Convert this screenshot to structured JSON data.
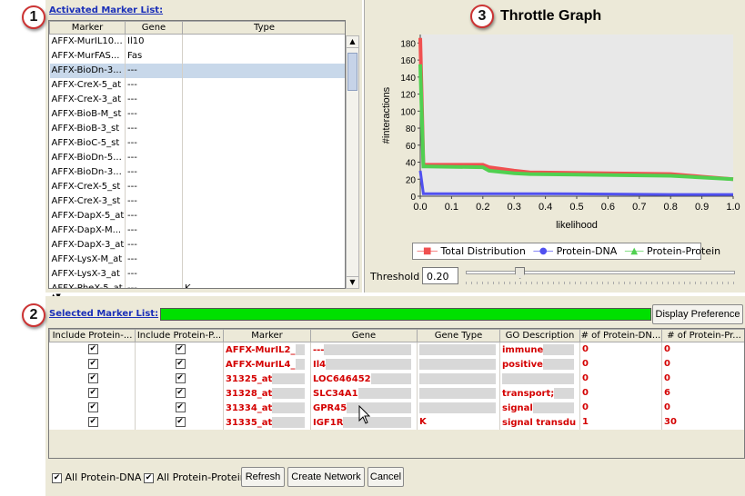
{
  "callouts": [
    "1",
    "2",
    "3"
  ],
  "activated": {
    "title": "Activated Marker List:",
    "columns": [
      "Marker",
      "Gene",
      "Type"
    ],
    "rows": [
      [
        "AFFX-MurIL10...",
        "Il10",
        ""
      ],
      [
        "AFFX-MurFAS...",
        "Fas",
        ""
      ],
      [
        "AFFX-BioDn-3...",
        "---",
        ""
      ],
      [
        "AFFX-CreX-5_at",
        "---",
        ""
      ],
      [
        "AFFX-CreX-3_at",
        "---",
        ""
      ],
      [
        "AFFX-BioB-M_st",
        "---",
        ""
      ],
      [
        "AFFX-BioB-3_st",
        "---",
        ""
      ],
      [
        "AFFX-BioC-5_st",
        "---",
        ""
      ],
      [
        "AFFX-BioDn-5...",
        "---",
        ""
      ],
      [
        "AFFX-BioDn-3...",
        "---",
        ""
      ],
      [
        "AFFX-CreX-5_st",
        "---",
        ""
      ],
      [
        "AFFX-CreX-3_st",
        "---",
        ""
      ],
      [
        "AFFX-DapX-5_at",
        "---",
        ""
      ],
      [
        "AFFX-DapX-M...",
        "---",
        ""
      ],
      [
        "AFFX-DapX-3_at",
        "---",
        ""
      ],
      [
        "AFFX-LysX-M_at",
        "---",
        ""
      ],
      [
        "AFFX-LysX-3_at",
        "---",
        ""
      ],
      [
        "AFFX-PheX-5_at",
        "---",
        "K"
      ]
    ],
    "selected_row": 2
  },
  "graph": {
    "title": "Throttle Graph",
    "threshold_label": "Threshold",
    "threshold_value": "0.20",
    "slider_value": 0.2
  },
  "chart_data": {
    "type": "line",
    "xlabel": "likelihood",
    "ylabel": "#interactions",
    "xlim": [
      0,
      1.0
    ],
    "ylim": [
      0,
      190
    ],
    "xticks": [
      "0.0",
      "0.1",
      "0.2",
      "0.3",
      "0.4",
      "0.5",
      "0.6",
      "0.7",
      "0.8",
      "0.9",
      "1.0"
    ],
    "yticks": [
      "0",
      "20",
      "40",
      "60",
      "80",
      "100",
      "120",
      "140",
      "160",
      "180"
    ],
    "grid": false,
    "legend_position": "bottom",
    "series": [
      {
        "name": "Total Distribution",
        "color": "#f05050",
        "x": [
          0,
          0.01,
          0.02,
          0.2,
          0.22,
          0.3,
          0.35,
          0.8,
          0.9,
          1.0
        ],
        "y": [
          186,
          37,
          37,
          37,
          34,
          30,
          28,
          26,
          23,
          20
        ]
      },
      {
        "name": "Protein-DNA",
        "color": "#5050f0",
        "x": [
          0,
          0.01,
          0.02,
          0.4,
          0.8,
          1.0
        ],
        "y": [
          30,
          3,
          3,
          3,
          2,
          2
        ]
      },
      {
        "name": "Protein-Protein",
        "color": "#50d050",
        "x": [
          0,
          0.01,
          0.02,
          0.2,
          0.22,
          0.3,
          0.35,
          0.8,
          0.9,
          1.0
        ],
        "y": [
          155,
          35,
          35,
          34,
          30,
          27,
          26,
          24,
          22,
          20
        ]
      }
    ]
  },
  "selected": {
    "title": "Selected Marker List:",
    "display_pref": "Display Preference",
    "columns": [
      "Include Protein-...",
      "Include Protein-P...",
      "Marker",
      "Gene",
      "Gene Type",
      "GO Description",
      "# of Protein-DN...",
      "# of Protein-Pr..."
    ],
    "rows": [
      {
        "marker": "AFFX-MurIL2_",
        "gene": "---",
        "type": "",
        "go": "immune",
        "dna": "0",
        "pp": "0"
      },
      {
        "marker": "AFFX-MurIL4_",
        "gene": "Il4",
        "type": "",
        "go": "positive",
        "dna": "0",
        "pp": "0"
      },
      {
        "marker": "31325_at",
        "gene": "LOC646452",
        "type": "",
        "go": "",
        "dna": "0",
        "pp": "0"
      },
      {
        "marker": "31328_at",
        "gene": "SLC34A1",
        "type": "",
        "go": "transport;",
        "dna": "0",
        "pp": "6"
      },
      {
        "marker": "31334_at",
        "gene": "GPR45",
        "type": "",
        "go": "signal",
        "dna": "0",
        "pp": "0"
      },
      {
        "marker": "31335_at",
        "gene": "IGF1R",
        "type": "K",
        "go": "signal transdu",
        "dna": "1",
        "pp": "30"
      }
    ]
  },
  "bottom": {
    "all_dna": "All Protein-DNA",
    "all_pp": "All Protein-Protein",
    "refresh": "Refresh",
    "create": "Create Network",
    "cancel": "Cancel"
  }
}
